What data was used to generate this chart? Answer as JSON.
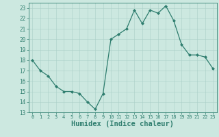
{
  "x": [
    0,
    1,
    2,
    3,
    4,
    5,
    6,
    7,
    8,
    9,
    10,
    11,
    12,
    13,
    14,
    15,
    16,
    17,
    18,
    19,
    20,
    21,
    22,
    23
  ],
  "y": [
    18,
    17,
    16.5,
    15.5,
    15,
    15,
    14.8,
    14,
    13.3,
    14.8,
    20,
    20.5,
    21,
    22.8,
    21.5,
    22.8,
    22.5,
    23.2,
    21.8,
    19.5,
    18.5,
    18.5,
    18.3,
    17.2
  ],
  "line_color": "#2e7d6e",
  "marker": "D",
  "marker_size": 2.0,
  "bg_color": "#cce8e0",
  "grid_color": "#aacfc8",
  "tick_color": "#2e7d6e",
  "xlabel": "Humidex (Indice chaleur)",
  "xlabel_fontsize": 7.5,
  "ylim": [
    13,
    23.5
  ],
  "xlim": [
    -0.5,
    23.5
  ],
  "yticks": [
    13,
    14,
    15,
    16,
    17,
    18,
    19,
    20,
    21,
    22,
    23
  ],
  "xticks": [
    0,
    1,
    2,
    3,
    4,
    5,
    6,
    7,
    8,
    9,
    10,
    11,
    12,
    13,
    14,
    15,
    16,
    17,
    18,
    19,
    20,
    21,
    22,
    23
  ]
}
